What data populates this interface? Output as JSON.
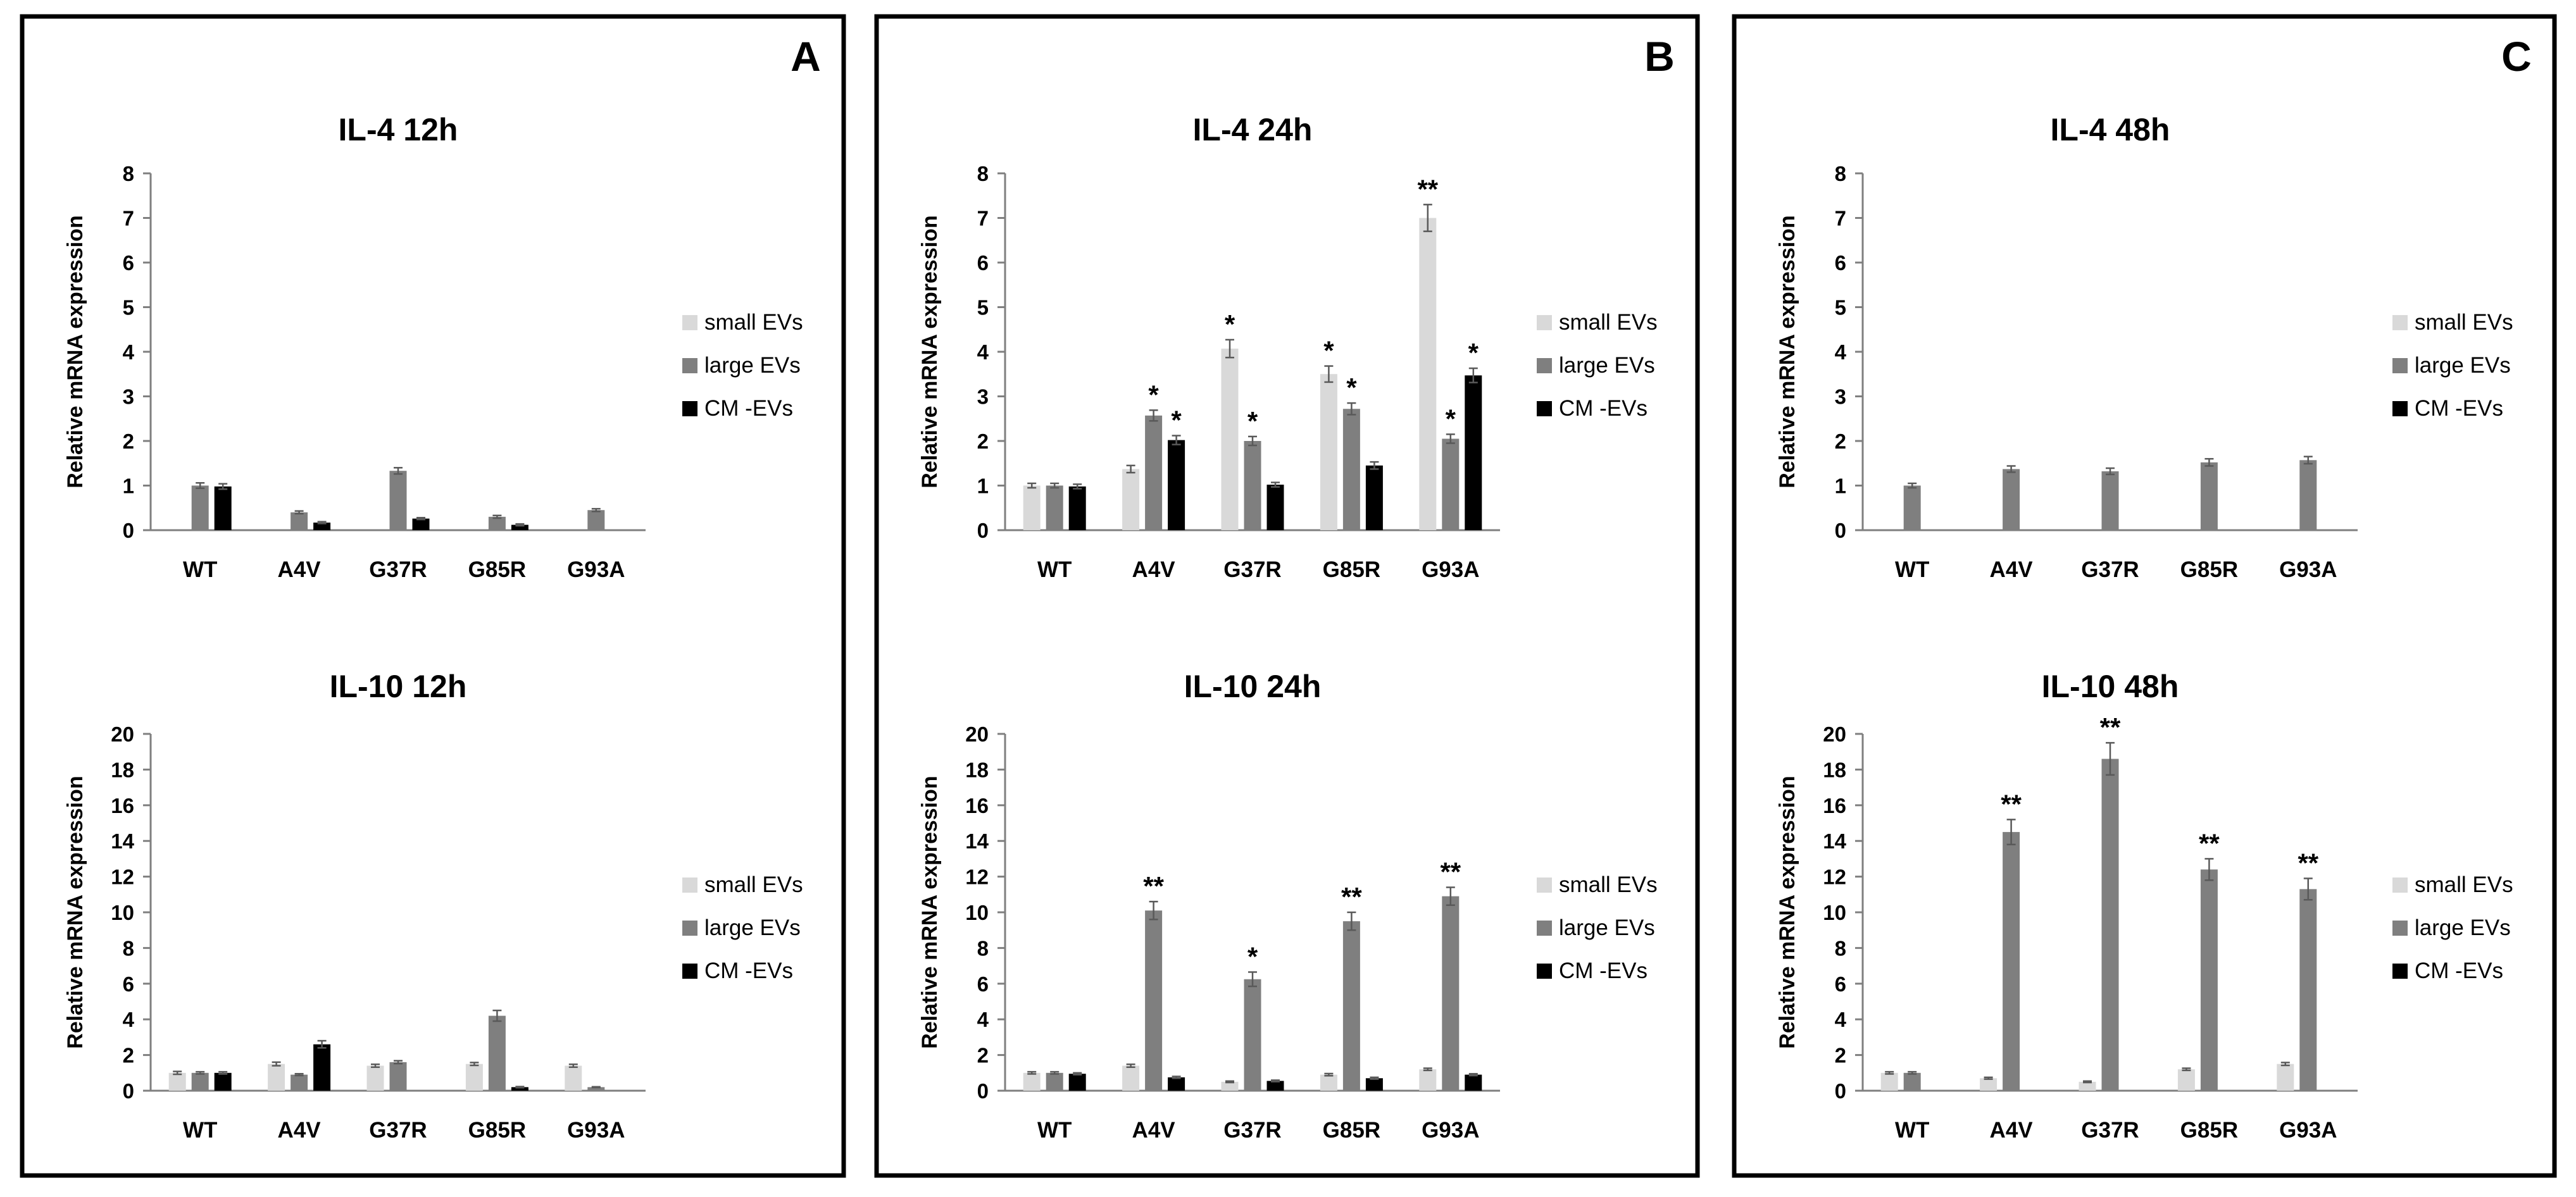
{
  "colors": {
    "small": "#d9d9d9",
    "large": "#7f7f7f",
    "cm": "#000000"
  },
  "chart_data": [
    {
      "panel": "A",
      "show_letter": true,
      "title": "IL-4 12h",
      "type": "bar",
      "ylabel": "Relative mRNA expression",
      "ylim": [
        0,
        8
      ],
      "yticks": [
        "0",
        "1",
        "2",
        "3",
        "4",
        "5",
        "6",
        "7",
        "8"
      ],
      "categories": [
        "WT",
        "A4V",
        "G37R",
        "G85R",
        "G93A"
      ],
      "series": [
        {
          "name": "small EVs",
          "values": [
            null,
            null,
            null,
            null,
            null
          ],
          "errors": [
            0,
            0,
            0,
            0,
            0
          ],
          "sig": [
            "",
            "",
            "",
            "",
            ""
          ]
        },
        {
          "name": "large EVs",
          "values": [
            1.0,
            0.4,
            1.33,
            0.3,
            0.45
          ],
          "errors": [
            0.06,
            0.03,
            0.07,
            0.03,
            0.03
          ],
          "sig": [
            "",
            "",
            "",
            "",
            ""
          ]
        },
        {
          "name": "CM -EVs",
          "values": [
            0.98,
            0.17,
            0.26,
            0.12,
            null
          ],
          "errors": [
            0.06,
            0.02,
            0.02,
            0.02,
            0
          ],
          "sig": [
            "",
            "",
            "",
            "",
            ""
          ]
        }
      ],
      "legend": [
        "small EVs",
        "large EVs",
        "CM -EVs"
      ]
    },
    {
      "panel": "A",
      "show_letter": false,
      "title": "IL-10 12h",
      "type": "bar",
      "ylabel": "Relative mRNA expression",
      "ylim": [
        0,
        20
      ],
      "yticks": [
        "0",
        "2",
        "4",
        "6",
        "8",
        "10",
        "12",
        "14",
        "16",
        "18",
        "20"
      ],
      "categories": [
        "WT",
        "A4V",
        "G37R",
        "G85R",
        "G93A"
      ],
      "series": [
        {
          "name": "small EVs",
          "values": [
            1.0,
            1.5,
            1.4,
            1.5,
            1.4
          ],
          "errors": [
            0.08,
            0.1,
            0.08,
            0.08,
            0.08
          ],
          "sig": [
            "",
            "",
            "",
            "",
            ""
          ]
        },
        {
          "name": "large EVs",
          "values": [
            1.0,
            0.9,
            1.6,
            4.2,
            0.2
          ],
          "errors": [
            0.06,
            0.05,
            0.08,
            0.3,
            0.02
          ],
          "sig": [
            "",
            "",
            "",
            "",
            ""
          ]
        },
        {
          "name": "CM -EVs",
          "values": [
            1.0,
            2.6,
            null,
            0.2,
            null
          ],
          "errors": [
            0.06,
            0.2,
            0,
            0.03,
            0
          ],
          "sig": [
            "",
            "",
            "",
            "",
            ""
          ]
        }
      ],
      "legend": [
        "small EVs",
        "large EVs",
        "CM -EVs"
      ]
    },
    {
      "panel": "B",
      "show_letter": true,
      "title": "IL-4 24h",
      "type": "bar",
      "ylabel": "Relative mRNA expression",
      "ylim": [
        0,
        8
      ],
      "yticks": [
        "0",
        "1",
        "2",
        "3",
        "4",
        "5",
        "6",
        "7",
        "8"
      ],
      "categories": [
        "WT",
        "A4V",
        "G37R",
        "G85R",
        "G93A"
      ],
      "series": [
        {
          "name": "small EVs",
          "values": [
            1.0,
            1.37,
            4.07,
            3.5,
            7.0
          ],
          "errors": [
            0.05,
            0.08,
            0.2,
            0.18,
            0.3
          ],
          "sig": [
            "",
            "",
            "*",
            "*",
            "**"
          ]
        },
        {
          "name": "large EVs",
          "values": [
            1.0,
            2.57,
            2.0,
            2.72,
            2.05
          ],
          "errors": [
            0.05,
            0.12,
            0.1,
            0.13,
            0.1
          ],
          "sig": [
            "",
            "*",
            "*",
            "*",
            "*"
          ]
        },
        {
          "name": "CM -EVs",
          "values": [
            0.98,
            2.02,
            1.02,
            1.45,
            3.47
          ],
          "errors": [
            0.05,
            0.1,
            0.05,
            0.08,
            0.16
          ],
          "sig": [
            "",
            "*",
            "",
            "",
            "*"
          ]
        }
      ],
      "legend": [
        "small EVs",
        "large EVs",
        "CM -EVs"
      ]
    },
    {
      "panel": "B",
      "show_letter": false,
      "title": "IL-10 24h",
      "type": "bar",
      "ylabel": "Relative mRNA expression",
      "ylim": [
        0,
        20
      ],
      "yticks": [
        "0",
        "2",
        "4",
        "6",
        "8",
        "10",
        "12",
        "14",
        "16",
        "18",
        "20"
      ],
      "categories": [
        "WT",
        "A4V",
        "G37R",
        "G85R",
        "G93A"
      ],
      "series": [
        {
          "name": "small EVs",
          "values": [
            1.0,
            1.4,
            0.5,
            0.9,
            1.2
          ],
          "errors": [
            0.06,
            0.08,
            0.04,
            0.06,
            0.06
          ],
          "sig": [
            "",
            "",
            "",
            "",
            ""
          ]
        },
        {
          "name": "large EVs",
          "values": [
            1.0,
            10.1,
            6.25,
            9.5,
            10.9
          ],
          "errors": [
            0.06,
            0.5,
            0.4,
            0.5,
            0.5
          ],
          "sig": [
            "",
            "**",
            "*",
            "**",
            "**"
          ]
        },
        {
          "name": "CM -EVs",
          "values": [
            0.95,
            0.75,
            0.55,
            0.7,
            0.9
          ],
          "errors": [
            0.05,
            0.05,
            0.04,
            0.05,
            0.05
          ],
          "sig": [
            "",
            "",
            "",
            "",
            ""
          ]
        }
      ],
      "legend": [
        "small EVs",
        "large EVs",
        "CM -EVs"
      ]
    },
    {
      "panel": "C",
      "show_letter": true,
      "title": "IL-4 48h",
      "type": "bar",
      "ylabel": "Relative mRNA expression",
      "ylim": [
        0,
        8
      ],
      "yticks": [
        "0",
        "1",
        "2",
        "3",
        "4",
        "5",
        "6",
        "7",
        "8"
      ],
      "categories": [
        "WT",
        "A4V",
        "G37R",
        "G85R",
        "G93A"
      ],
      "series": [
        {
          "name": "small EVs",
          "values": [
            null,
            null,
            null,
            null,
            null
          ],
          "errors": [
            0,
            0,
            0,
            0,
            0
          ],
          "sig": [
            "",
            "",
            "",
            "",
            ""
          ]
        },
        {
          "name": "large EVs",
          "values": [
            1.0,
            1.37,
            1.32,
            1.52,
            1.57
          ],
          "errors": [
            0.05,
            0.07,
            0.07,
            0.08,
            0.08
          ],
          "sig": [
            "",
            "",
            "",
            "",
            ""
          ]
        },
        {
          "name": "CM -EVs",
          "values": [
            null,
            null,
            null,
            null,
            null
          ],
          "errors": [
            0,
            0,
            0,
            0,
            0
          ],
          "sig": [
            "",
            "",
            "",
            "",
            ""
          ]
        }
      ],
      "legend": [
        "small EVs",
        "large EVs",
        "CM -EVs"
      ]
    },
    {
      "panel": "C",
      "show_letter": false,
      "title": "IL-10 48h",
      "type": "bar",
      "ylabel": "Relative mRNA expression",
      "ylim": [
        0,
        20
      ],
      "yticks": [
        "0",
        "2",
        "4",
        "6",
        "8",
        "10",
        "12",
        "14",
        "16",
        "18",
        "20"
      ],
      "categories": [
        "WT",
        "A4V",
        "G37R",
        "G85R",
        "G93A"
      ],
      "series": [
        {
          "name": "small EVs",
          "values": [
            1.0,
            0.7,
            0.5,
            1.2,
            1.5
          ],
          "errors": [
            0.06,
            0.05,
            0.04,
            0.06,
            0.08
          ],
          "sig": [
            "",
            "",
            "",
            "",
            ""
          ]
        },
        {
          "name": "large EVs",
          "values": [
            1.0,
            14.5,
            18.6,
            12.4,
            11.3
          ],
          "errors": [
            0.06,
            0.7,
            0.9,
            0.6,
            0.6
          ],
          "sig": [
            "",
            "**",
            "**",
            "**",
            "**"
          ]
        },
        {
          "name": "CM -EVs",
          "values": [
            null,
            null,
            null,
            null,
            null
          ],
          "errors": [
            0,
            0,
            0,
            0,
            0
          ],
          "sig": [
            "",
            "",
            "",
            "",
            ""
          ]
        }
      ],
      "legend": [
        "small EVs",
        "large EVs",
        "CM -EVs"
      ]
    }
  ]
}
